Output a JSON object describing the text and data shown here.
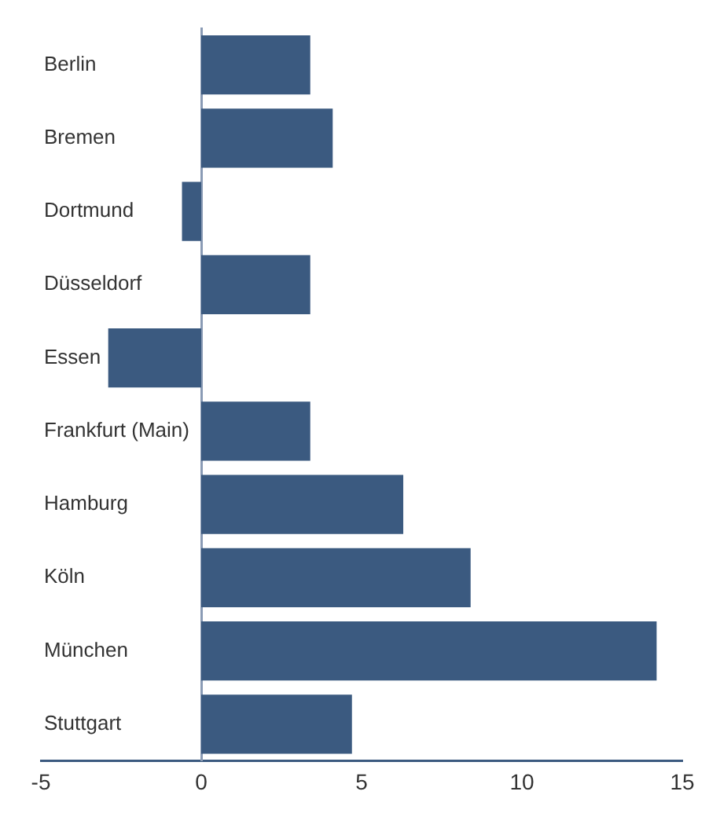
{
  "chart_data": {
    "type": "bar",
    "orientation": "horizontal",
    "categories": [
      "Berlin",
      "Bremen",
      "Dortmund",
      "Düsseldorf",
      "Essen",
      "Frankfurt (Main)",
      "Hamburg",
      "Köln",
      "München",
      "Stuttgart"
    ],
    "values": [
      3.4,
      4.1,
      -0.6,
      3.4,
      -2.9,
      3.4,
      6.3,
      8.4,
      14.2,
      4.7
    ],
    "color": "#3b5a80",
    "xlim": [
      -5,
      15
    ],
    "xticks": [
      -5,
      0,
      5,
      10,
      15
    ],
    "grid": false,
    "legend": false
  }
}
